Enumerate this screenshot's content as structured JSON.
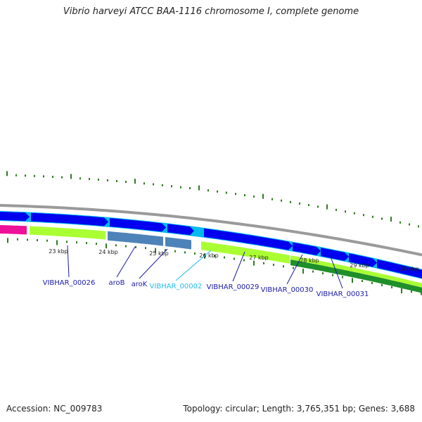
{
  "title": "Vibrio harveyi ATCC BAA-1116 chromosome I, complete genome",
  "footer": {
    "accession": "Accession: NC_009783",
    "stats": "Topology: circular; Length: 3,765,351 bp; Genes: 3,688"
  },
  "scale": {
    "unit": "kbp",
    "ticks": [
      "23 kbp",
      "24 kbp",
      "25 kbp",
      "26 kbp",
      "27 kbp",
      "28 kbp",
      "29 kbp",
      "30 kbp"
    ]
  },
  "colors": {
    "background_ring": "#888888",
    "forward_gene": "#0000ee",
    "gap": "#00bbee",
    "feature_lime": "#aaff33",
    "feature_steel": "#4e83b9",
    "feature_magenta": "#ee1199",
    "feature_green": "#1f8f2a",
    "tick": "#2e7d1e",
    "label_default": "#1a1aaa",
    "label_highlight": "#22bbee"
  },
  "genes": [
    {
      "label": "VIBHAR_00026",
      "color": "#1a1aaa"
    },
    {
      "label": "aroB",
      "color": "#1a1aaa"
    },
    {
      "label": "aroK",
      "color": "#1a1aaa"
    },
    {
      "label": "VIBHAR_00002",
      "color": "#22bbee"
    },
    {
      "label": "VIBHAR_00029",
      "color": "#1a1aaa"
    },
    {
      "label": "VIBHAR_00030",
      "color": "#1a1aaa"
    },
    {
      "label": "VIBHAR_00031",
      "color": "#1a1aaa"
    }
  ]
}
